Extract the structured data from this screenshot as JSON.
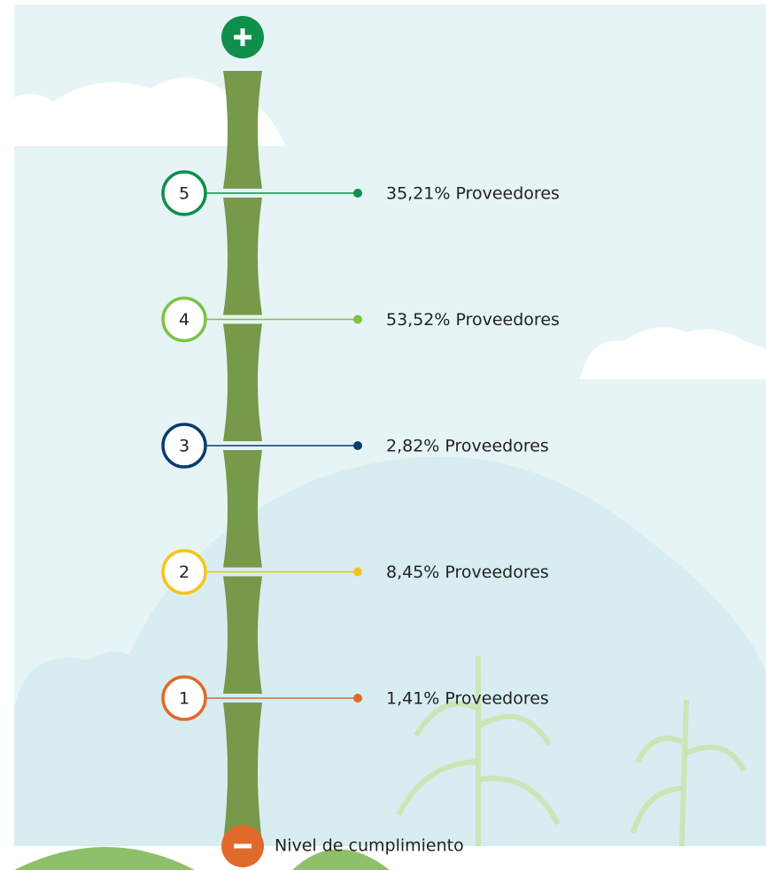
{
  "levels": [
    {
      "level": 5,
      "text": "35,21% Proveedores",
      "color": "#0e8f4c"
    },
    {
      "level": 4,
      "text": "53,52% Proveedores",
      "color": "#7dc242"
    },
    {
      "level": 3,
      "text": "2,82% Proveedores",
      "color": "#0b3a6e"
    },
    {
      "level": 2,
      "text": "8,45% Proveedores",
      "color": "#f5c518"
    },
    {
      "level": 1,
      "text": "1,41% Proveedores",
      "color": "#e06a2c"
    }
  ],
  "footer": {
    "label": "Nivel de cumplimiento"
  }
}
